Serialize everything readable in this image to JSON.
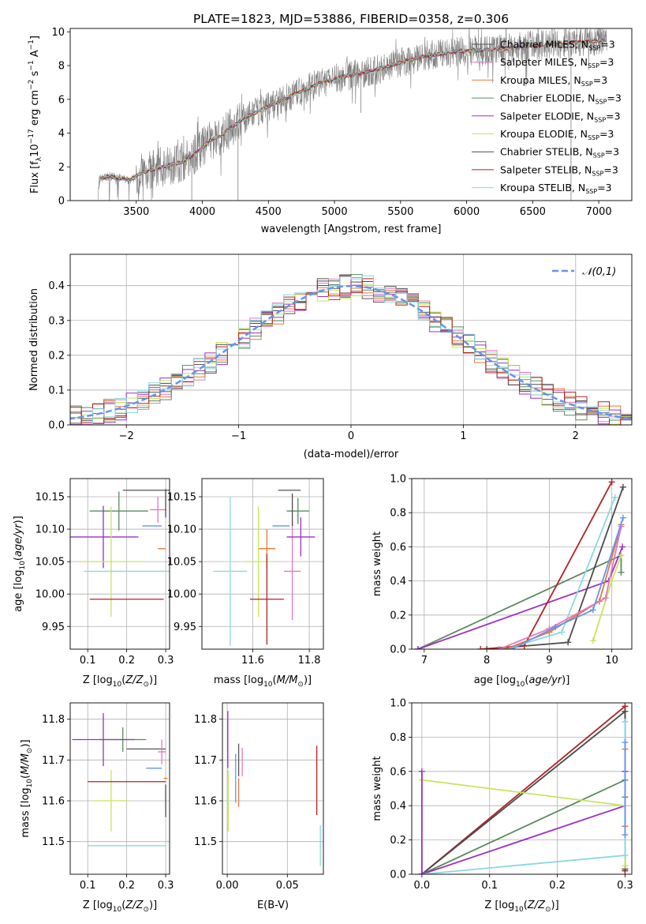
{
  "colors": {
    "Chabrier MILES": "#555555",
    "Salpeter MILES": "#e377c2",
    "Kroupa MILES": "#e07b39",
    "Chabrier ELODIE": "#5b8a5f",
    "Salpeter ELODIE": "#9b30c0",
    "Kroupa ELODIE": "#c8e45a",
    "Chabrier STELIB": "#4b4b4b",
    "Salpeter STELIB": "#b22222",
    "Kroupa STELIB": "#8ad8e0",
    "blue": "#6495ed",
    "grid": "#b0b0b0",
    "spectrum": "#808080"
  },
  "chart_data": [
    {
      "id": "spectrum",
      "type": "line",
      "title": "PLATE=1823, MJD=53886, FIBERID=0358, z=0.306",
      "xlabel": "wavelength [Angstrom, rest frame]",
      "ylabel": "Flux [f",
      "ylabel_sub": "λ",
      "ylabel_tail": "10",
      "ylabel_exp": "−17",
      "ylabel_units": " erg cm",
      "xlim": [
        3000,
        7250
      ],
      "ylim": [
        0,
        10.2
      ],
      "xticks": [
        "3500",
        "4000",
        "4500",
        "5000",
        "5500",
        "6000",
        "6500",
        "7000"
      ],
      "yticks": [
        "0",
        "2",
        "4",
        "6",
        "8",
        "10"
      ],
      "continuum": [
        [
          3210,
          0.3
        ],
        [
          3220,
          1.3
        ],
        [
          3300,
          1.45
        ],
        [
          3450,
          1.2
        ],
        [
          3550,
          1.7
        ],
        [
          3700,
          2.0
        ],
        [
          3850,
          2.3
        ],
        [
          3950,
          2.8
        ],
        [
          4050,
          3.5
        ],
        [
          4150,
          3.9
        ],
        [
          4300,
          4.8
        ],
        [
          4500,
          5.6
        ],
        [
          4700,
          6.3
        ],
        [
          4900,
          7.0
        ],
        [
          5100,
          7.4
        ],
        [
          5300,
          7.7
        ],
        [
          5500,
          8.2
        ],
        [
          5700,
          8.6
        ],
        [
          5900,
          8.8
        ],
        [
          6100,
          8.9
        ],
        [
          6300,
          9.0
        ],
        [
          6500,
          9.2
        ],
        [
          6700,
          9.3
        ],
        [
          6900,
          9.4
        ],
        [
          7050,
          9.5
        ]
      ],
      "legend": [
        "Chabrier MILES",
        "Salpeter MILES",
        "Kroupa MILES",
        "Chabrier ELODIE",
        "Salpeter ELODIE",
        "Kroupa ELODIE",
        "Chabrier STELIB",
        "Salpeter STELIB",
        "Kroupa STELIB"
      ],
      "legend_suffix": ", N",
      "legend_sub": "SSP",
      "legend_tail": "=3"
    },
    {
      "id": "residuals",
      "type": "line",
      "xlabel": "(data-model)/error",
      "ylabel": "Normed distribution",
      "xlim": [
        -2.5,
        2.5
      ],
      "ylim": [
        0,
        0.49
      ],
      "xticks": [
        "−2",
        "−1",
        "0",
        "1",
        "2"
      ],
      "yticks": [
        "0.0",
        "0.1",
        "0.2",
        "0.3",
        "0.4"
      ],
      "legend": "𝒩(0,1)"
    },
    {
      "id": "age-vs-Z",
      "type": "scatter",
      "xlabel": "Z [log",
      "ylabel": "age  [log",
      "xlim": [
        0.055,
        0.31
      ],
      "ylim": [
        9.915,
        10.178
      ],
      "xticks": [
        "0.1",
        "0.2",
        "0.3"
      ],
      "yticks": [
        "9.95",
        "10.00",
        "10.05",
        "10.10",
        "10.15"
      ],
      "points": [
        {
          "series": "Chabrier MILES",
          "x": 0.25,
          "y": 10.16,
          "ex": 0.06,
          "ey": 0.0
        },
        {
          "series": "Salpeter MILES",
          "x": 0.28,
          "y": 10.13,
          "ex": 0.02,
          "ey": 0.02
        },
        {
          "series": "Kroupa MILES",
          "x": 0.29,
          "y": 10.07,
          "ex": 0.01,
          "ey": 0.0
        },
        {
          "series": "Chabrier ELODIE",
          "x": 0.18,
          "y": 10.128,
          "ex": 0.075,
          "ey": 0.03
        },
        {
          "series": "Salpeter ELODIE",
          "x": 0.14,
          "y": 10.088,
          "ex": 0.09,
          "ey": 0.048
        },
        {
          "series": "Kroupa ELODIE",
          "x": 0.16,
          "y": 10.05,
          "ex": 0.085,
          "ey": 0.085
        },
        {
          "series": "Chabrier STELIB",
          "x": 0.3,
          "y": 10.14,
          "ex": 0.0,
          "ey": 0.022
        },
        {
          "series": "Salpeter STELIB",
          "x": 0.2,
          "y": 9.992,
          "ex": 0.095,
          "ey": 0.0
        },
        {
          "series": "Kroupa STELIB",
          "x": 0.2,
          "y": 10.035,
          "ex": 0.11,
          "ey": 0.0
        },
        {
          "series": "blue",
          "x": 0.265,
          "y": 10.105,
          "ex": 0.025,
          "ey": 0.0
        }
      ]
    },
    {
      "id": "age-vs-mass",
      "type": "scatter",
      "xlabel": "mass [log",
      "xlim": [
        11.42,
        11.85
      ],
      "ylim": [
        9.915,
        10.178
      ],
      "xticks": [
        "11.6",
        "11.8"
      ],
      "yticks": [
        "9.95",
        "10.00",
        "10.05",
        "10.10",
        "10.15"
      ],
      "points": [
        {
          "series": "Chabrier MILES",
          "x": 11.73,
          "y": 10.16,
          "ex": 0.04,
          "ey": 0.0
        },
        {
          "series": "Salpeter MILES",
          "x": 11.74,
          "y": 10.035,
          "ex": 0.03,
          "ey": 0.075
        },
        {
          "series": "Kroupa MILES",
          "x": 11.65,
          "y": 10.07,
          "ex": 0.03,
          "ey": 0.03
        },
        {
          "series": "Chabrier ELODIE",
          "x": 11.76,
          "y": 10.128,
          "ex": 0.04,
          "ey": 0.02
        },
        {
          "series": "Salpeter ELODIE",
          "x": 11.77,
          "y": 10.088,
          "ex": 0.05,
          "ey": 0.03
        },
        {
          "series": "Kroupa ELODIE",
          "x": 11.62,
          "y": 10.05,
          "ex": 0.05,
          "ey": 0.085
        },
        {
          "series": "Chabrier STELIB",
          "x": 11.74,
          "y": 10.13,
          "ex": 0.0,
          "ey": 0.025
        },
        {
          "series": "Salpeter STELIB",
          "x": 11.65,
          "y": 9.992,
          "ex": 0.06,
          "ey": 0.07
        },
        {
          "series": "Kroupa STELIB",
          "x": 11.52,
          "y": 10.035,
          "ex": 0.06,
          "ey": 0.115
        },
        {
          "series": "blue",
          "x": 11.7,
          "y": 10.105,
          "ex": 0.03,
          "ey": 0.0
        }
      ]
    },
    {
      "id": "weight-vs-age",
      "type": "line",
      "xlabel": "age  [log",
      "ylabel": "mass weight",
      "xlim": [
        6.8,
        10.32
      ],
      "ylim": [
        0,
        1.0
      ],
      "xticks": [
        "7",
        "8",
        "9",
        "10"
      ],
      "yticks": [
        "0.0",
        "0.2",
        "0.4",
        "0.6",
        "0.8",
        "1.0"
      ],
      "series": [
        {
          "name": "Chabrier ELODIE",
          "pts": [
            [
              6.9,
              0.0
            ],
            [
              10.15,
              0.55
            ],
            [
              10.15,
              0.45
            ]
          ]
        },
        {
          "name": "Salpeter ELODIE",
          "pts": [
            [
              6.9,
              0.0
            ],
            [
              9.95,
              0.4
            ],
            [
              10.17,
              0.6
            ]
          ]
        },
        {
          "name": "Kroupa ELODIE",
          "pts": [
            [
              9.7,
              0.05
            ],
            [
              10.0,
              0.4
            ],
            [
              10.15,
              0.55
            ]
          ]
        },
        {
          "name": "Chabrier STELIB",
          "pts": [
            [
              8.0,
              0.0
            ],
            [
              9.3,
              0.04
            ],
            [
              10.18,
              0.95
            ]
          ]
        },
        {
          "name": "Salpeter STELIB",
          "pts": [
            [
              7.9,
              0.0
            ],
            [
              8.6,
              0.02
            ],
            [
              10.0,
              0.98
            ]
          ]
        },
        {
          "name": "Kroupa STELIB",
          "pts": [
            [
              8.3,
              0.0
            ],
            [
              9.2,
              0.1
            ],
            [
              10.05,
              0.89
            ]
          ]
        },
        {
          "name": "Kroupa MILES",
          "pts": [
            [
              8.3,
              0.0
            ],
            [
              9.0,
              0.1
            ],
            [
              9.8,
              0.28
            ],
            [
              10.15,
              0.73
            ]
          ]
        },
        {
          "name": "Salpeter MILES",
          "pts": [
            [
              8.2,
              0.0
            ],
            [
              9.0,
              0.12
            ],
            [
              9.9,
              0.3
            ],
            [
              10.15,
              0.72
            ]
          ]
        },
        {
          "name": "blue",
          "pts": [
            [
              8.4,
              0.0
            ],
            [
              9.1,
              0.13
            ],
            [
              9.7,
              0.23
            ],
            [
              10.18,
              0.77
            ]
          ]
        }
      ]
    },
    {
      "id": "mass-vs-Z",
      "type": "scatter",
      "xlabel": "Z [log",
      "ylabel": "mass [log",
      "xlim": [
        0.055,
        0.31
      ],
      "ylim": [
        11.42,
        11.84
      ],
      "xticks": [
        "0.1",
        "0.2",
        "0.3"
      ],
      "yticks": [
        "11.5",
        "11.6",
        "11.7",
        "11.8"
      ],
      "points": [
        {
          "series": "Chabrier MILES",
          "x": 0.25,
          "y": 11.727,
          "ex": 0.05,
          "ey": 0.0
        },
        {
          "series": "Salpeter MILES",
          "x": 0.29,
          "y": 11.72,
          "ex": 0.01,
          "ey": 0.03
        },
        {
          "series": "Kroupa MILES",
          "x": 0.3,
          "y": 11.655,
          "ex": 0.005,
          "ey": 0.0
        },
        {
          "series": "Chabrier ELODIE",
          "x": 0.19,
          "y": 11.75,
          "ex": 0.06,
          "ey": 0.03
        },
        {
          "series": "Salpeter ELODIE",
          "x": 0.14,
          "y": 11.75,
          "ex": 0.08,
          "ey": 0.065
        },
        {
          "series": "Kroupa ELODIE",
          "x": 0.16,
          "y": 11.6,
          "ex": 0.045,
          "ey": 0.075
        },
        {
          "series": "Chabrier STELIB",
          "x": 0.3,
          "y": 11.6,
          "ex": 0.0,
          "ey": 0.04
        },
        {
          "series": "Salpeter STELIB",
          "x": 0.2,
          "y": 11.647,
          "ex": 0.1,
          "ey": 0.0
        },
        {
          "series": "Kroupa STELIB",
          "x": 0.2,
          "y": 11.49,
          "ex": 0.1,
          "ey": 0.0
        },
        {
          "series": "blue",
          "x": 0.27,
          "y": 11.68,
          "ex": 0.02,
          "ey": 0.0
        }
      ]
    },
    {
      "id": "mass-vs-ebv",
      "type": "scatter",
      "xlabel": "E(B-V)",
      "xlim": [
        -0.004,
        0.08
      ],
      "ylim": [
        11.42,
        11.84
      ],
      "xticks": [
        "0.00",
        "0.05"
      ],
      "yticks": [
        "11.5",
        "11.6",
        "11.7",
        "11.8"
      ],
      "points": [
        {
          "series": "Salpeter ELODIE",
          "x": 0.0005,
          "y": 11.75,
          "ex": 0.0,
          "ey": 0.07
        },
        {
          "series": "Kroupa ELODIE",
          "x": 0.0008,
          "y": 11.6,
          "ex": 0.0,
          "ey": 0.075
        },
        {
          "series": "blue",
          "x": 0.007,
          "y": 11.655,
          "ex": 0.0,
          "ey": 0.06
        },
        {
          "series": "Kroupa MILES",
          "x": 0.0095,
          "y": 11.62,
          "ex": 0.0,
          "ey": 0.035
        },
        {
          "series": "Chabrier MILES",
          "x": 0.0095,
          "y": 11.7,
          "ex": 0.0,
          "ey": 0.04
        },
        {
          "series": "Salpeter MILES",
          "x": 0.0125,
          "y": 11.695,
          "ex": 0.0,
          "ey": 0.035
        },
        {
          "series": "Salpeter STELIB",
          "x": 0.0745,
          "y": 11.65,
          "ex": 0.0,
          "ey": 0.085
        },
        {
          "series": "Kroupa STELIB",
          "x": 0.0775,
          "y": 11.49,
          "ex": 0.0,
          "ey": 0.05
        }
      ]
    },
    {
      "id": "weight-vs-Z",
      "type": "line",
      "xlabel": "Z [log",
      "ylabel": "mass weight",
      "xlim": [
        -0.015,
        0.31
      ],
      "ylim": [
        0,
        1.0
      ],
      "xticks": [
        "0.0",
        "0.1",
        "0.2",
        "0.3"
      ],
      "yticks": [
        "0.0",
        "0.2",
        "0.4",
        "0.6",
        "0.8",
        "1.0"
      ],
      "series": [
        {
          "name": "Salpeter STELIB",
          "pts": [
            [
              0.0,
              0.0
            ],
            [
              0.3,
              0.98
            ],
            [
              0.3,
              0.02
            ]
          ]
        },
        {
          "name": "Chabrier STELIB",
          "pts": [
            [
              0.0,
              0.0
            ],
            [
              0.3,
              0.95
            ],
            [
              0.3,
              0.03
            ]
          ]
        },
        {
          "name": "Chabrier ELODIE",
          "pts": [
            [
              0.0,
              0.0
            ],
            [
              0.3,
              0.55
            ],
            [
              0.3,
              0.45
            ]
          ]
        },
        {
          "name": "Salpeter ELODIE",
          "pts": [
            [
              0.0,
              0.0
            ],
            [
              0.3,
              0.4
            ],
            [
              0.3,
              0.6
            ]
          ]
        },
        {
          "name": "Kroupa ELODIE",
          "pts": [
            [
              0.0,
              0.55
            ],
            [
              0.3,
              0.4
            ],
            [
              0.3,
              0.05
            ]
          ]
        },
        {
          "name": "Kroupa STELIB",
          "pts": [
            [
              0.0,
              0.0
            ],
            [
              0.3,
              0.11
            ],
            [
              0.3,
              0.89
            ]
          ]
        },
        {
          "name": "Salpeter ELODIE",
          "pts": [
            [
              0.0,
              0.6
            ],
            [
              0.0,
              0.0
            ]
          ]
        },
        {
          "name": "Kroupa MILES",
          "pts": [
            [
              0.3,
              0.28
            ],
            [
              0.3,
              0.73
            ]
          ]
        },
        {
          "name": "blue",
          "pts": [
            [
              0.3,
              0.23
            ],
            [
              0.3,
              0.77
            ]
          ]
        }
      ]
    }
  ],
  "labels": {
    "zsun": "Z/Z",
    "msun": "M/M",
    "sun": "⊙",
    "log10": "10",
    "ageyr": "age/yr",
    "units_exp1": "−2",
    "s": " s",
    "units_exp2": "−1",
    "A": " A"
  }
}
